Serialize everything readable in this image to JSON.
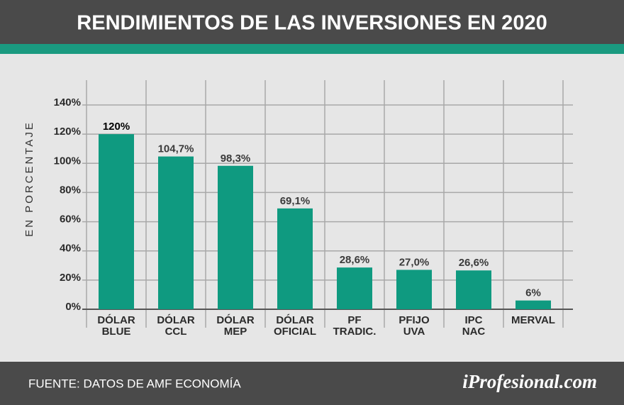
{
  "title": "RENDIMIENTOS DE LAS INVERSIONES EN 2020",
  "source": "FUENTE: DATOS DE AMF ECONOMÍA",
  "brand": "iProfesional.com",
  "chart_data": {
    "type": "bar",
    "ylabel": "EN PORCENTAJE",
    "categories": [
      "DÓLAR\nBLUE",
      "DÓLAR\nCCL",
      "DÓLAR\nMEP",
      "DÓLAR\nOFICIAL",
      "PF\nTRADIC.",
      "PFIJO\nUVA",
      "IPC\nNAC",
      "MERVAL"
    ],
    "values": [
      120,
      104.7,
      98.3,
      69.1,
      28.6,
      27.0,
      26.6,
      6
    ],
    "value_labels": [
      "120%",
      "104,7%",
      "98,3%",
      "69,1%",
      "28,6%",
      "27,0%",
      "26,6%",
      "6%"
    ],
    "color": "#0f9a80",
    "ylim": [
      0,
      140
    ],
    "yticks": [
      {
        "value": 0,
        "label": "0%"
      },
      {
        "value": 20,
        "label": "20%"
      },
      {
        "value": 40,
        "label": "40%"
      },
      {
        "value": 60,
        "label": "60%"
      },
      {
        "value": 80,
        "label": "80%"
      },
      {
        "value": 100,
        "label": "100%"
      },
      {
        "value": 120,
        "label": "120%"
      },
      {
        "value": 140,
        "label": "140%"
      }
    ],
    "grid": true
  }
}
